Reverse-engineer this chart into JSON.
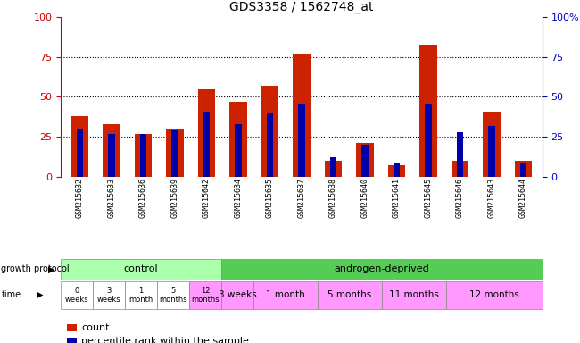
{
  "title": "GDS3358 / 1562748_at",
  "samples": [
    "GSM215632",
    "GSM215633",
    "GSM215636",
    "GSM215639",
    "GSM215642",
    "GSM215634",
    "GSM215635",
    "GSM215637",
    "GSM215638",
    "GSM215640",
    "GSM215641",
    "GSM215645",
    "GSM215646",
    "GSM215643",
    "GSM215644"
  ],
  "red_values": [
    38,
    33,
    27,
    30,
    55,
    47,
    57,
    77,
    10,
    21,
    7,
    83,
    10,
    41,
    10
  ],
  "blue_values": [
    30,
    27,
    27,
    29,
    41,
    33,
    40,
    46,
    12,
    20,
    8,
    46,
    28,
    32,
    9
  ],
  "ylim": [
    0,
    100
  ],
  "yticks": [
    0,
    25,
    50,
    75,
    100
  ],
  "left_ycolor": "#cc0000",
  "right_ycolor": "#0000cc",
  "bar_red": "#cc2200",
  "bar_blue": "#0000aa",
  "growth_protocol_label": "growth protocol",
  "time_label": "time",
  "control_label": "control",
  "androgen_label": "androgen-deprived",
  "control_color": "#aaffaa",
  "androgen_color": "#55cc55",
  "time_control_colors": [
    "#ffffff",
    "#ffffff",
    "#ffffff",
    "#ffffff",
    "#ff99ff"
  ],
  "time_androgen_color": "#ff99ff",
  "time_androgen_labels": [
    "3 weeks",
    "1 month",
    "5 months",
    "11 months",
    "12 months"
  ],
  "time_control_labels": [
    "0\nweeks",
    "3\nweeks",
    "1\nmonth",
    "5\nmonths",
    "12\nmonths"
  ],
  "androgen_groups": [
    1,
    2,
    2,
    2,
    3
  ],
  "legend_count": "count",
  "legend_pct": "percentile rank within the sample"
}
